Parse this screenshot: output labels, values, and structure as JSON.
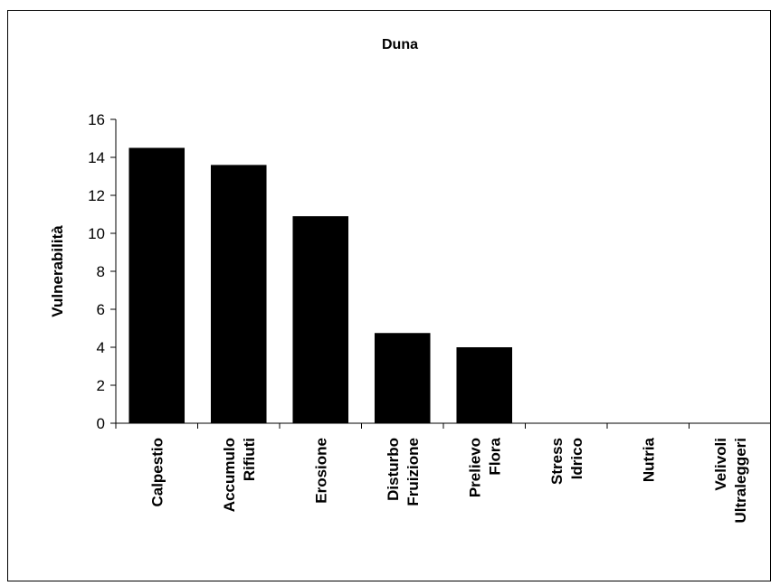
{
  "chart_data": {
    "type": "bar",
    "title": "Duna",
    "xlabel": "",
    "ylabel": "Vulnerabilità",
    "ylim": [
      0,
      16
    ],
    "yticks": [
      0,
      2,
      4,
      6,
      8,
      10,
      12,
      14,
      16
    ],
    "grid": false,
    "legend": "none",
    "bar_color": "#000000",
    "categories": [
      [
        "Calpestio"
      ],
      [
        "Accumulo",
        "Rifiuti"
      ],
      [
        "Erosione"
      ],
      [
        "Disturbo",
        "Fruizione"
      ],
      [
        "Prelievo",
        "Flora"
      ],
      [
        "Stress",
        "Idrico"
      ],
      [
        "Nutria"
      ],
      [
        "Velivoli",
        "Ultraleggeri"
      ]
    ],
    "values": [
      14.5,
      13.6,
      10.9,
      4.75,
      4.0,
      0,
      0,
      0
    ]
  }
}
